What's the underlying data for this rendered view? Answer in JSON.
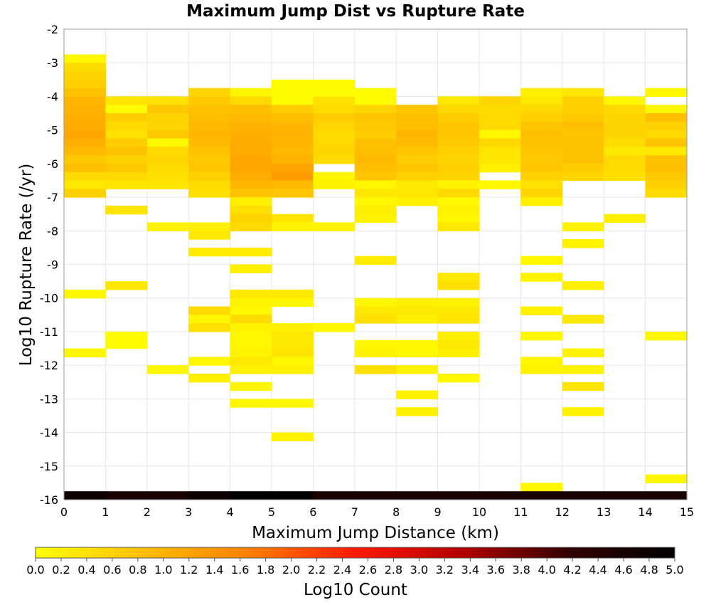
{
  "chart_data": {
    "type": "heatmap",
    "title": "Maximum Jump Dist vs Rupture Rate",
    "xlabel": "Maximum Jump Distance (km)",
    "ylabel": "Log10 Rupture Rate (/yr)",
    "colorbar_label": "Log10 Count",
    "x_range": [
      0,
      15
    ],
    "y_range": [
      -16,
      -2
    ],
    "x_ticks": [
      "0",
      "1",
      "2",
      "3",
      "4",
      "5",
      "6",
      "7",
      "8",
      "9",
      "10",
      "11",
      "12",
      "13",
      "14",
      "15"
    ],
    "y_ticks": [
      "-2",
      "-3",
      "-4",
      "-5",
      "-6",
      "-7",
      "-8",
      "-9",
      "-10",
      "-11",
      "-12",
      "-13",
      "-14",
      "-15",
      "-16"
    ],
    "colorbar_range": [
      0.0,
      5.0
    ],
    "colorbar_ticks": [
      "0.0",
      "0.2",
      "0.4",
      "0.6",
      "0.8",
      "1.0",
      "1.2",
      "1.4",
      "1.6",
      "1.8",
      "2.0",
      "2.2",
      "2.4",
      "2.6",
      "2.8",
      "3.0",
      "3.2",
      "3.4",
      "3.6",
      "3.8",
      "4.0",
      "4.2",
      "4.4",
      "4.6",
      "4.8",
      "5.0"
    ],
    "colormap": [
      "#ffff00",
      "#ffbf00",
      "#ff8000",
      "#ff1a00",
      "#b30000",
      "#330000",
      "#000000"
    ],
    "grid": true,
    "bin_width_x": 1,
    "bin_height_y": 0.25,
    "cells": [
      [
        0,
        -2.75,
        0.1
      ],
      [
        0,
        -3.0,
        0.45
      ],
      [
        0,
        -3.25,
        0.55
      ],
      [
        0,
        -3.5,
        0.6
      ],
      [
        0,
        -3.75,
        0.8
      ],
      [
        0,
        -4.0,
        0.95
      ],
      [
        0,
        -4.25,
        1.0
      ],
      [
        0,
        -4.5,
        1.05
      ],
      [
        0,
        -4.75,
        1.1
      ],
      [
        0,
        -5.0,
        1.15
      ],
      [
        0,
        -5.25,
        1.05
      ],
      [
        0,
        -5.5,
        0.9
      ],
      [
        0,
        -5.75,
        0.7
      ],
      [
        0,
        -6.0,
        0.85
      ],
      [
        0,
        -6.25,
        0.5
      ],
      [
        0,
        -6.5,
        0.3
      ],
      [
        0,
        -6.75,
        0.6
      ],
      [
        0,
        -9.75,
        0.1
      ],
      [
        0,
        -11.5,
        0.1
      ],
      [
        0,
        -15.75,
        4.8
      ],
      [
        1,
        -4.0,
        0.35
      ],
      [
        1,
        -4.25,
        0.05
      ],
      [
        1,
        -4.5,
        0.65
      ],
      [
        1,
        -4.75,
        0.5
      ],
      [
        1,
        -5.0,
        0.4
      ],
      [
        1,
        -5.25,
        0.65
      ],
      [
        1,
        -5.5,
        0.8
      ],
      [
        1,
        -5.75,
        0.6
      ],
      [
        1,
        -6.0,
        0.7
      ],
      [
        1,
        -6.25,
        0.5
      ],
      [
        1,
        -6.5,
        0.35
      ],
      [
        1,
        -7.25,
        0.35
      ],
      [
        1,
        -9.5,
        0.3
      ],
      [
        1,
        -11.0,
        0.05
      ],
      [
        1,
        -11.25,
        0.05
      ],
      [
        1,
        -15.75,
        4.6
      ],
      [
        2,
        -4.0,
        0.4
      ],
      [
        2,
        -4.25,
        0.7
      ],
      [
        2,
        -4.5,
        0.55
      ],
      [
        2,
        -4.75,
        0.55
      ],
      [
        2,
        -5.0,
        0.7
      ],
      [
        2,
        -5.25,
        0.1
      ],
      [
        2,
        -5.5,
        0.5
      ],
      [
        2,
        -5.75,
        0.55
      ],
      [
        2,
        -6.0,
        0.45
      ],
      [
        2,
        -6.25,
        0.4
      ],
      [
        2,
        -6.5,
        0.35
      ],
      [
        2,
        -7.75,
        0.15
      ],
      [
        2,
        -12.0,
        0.1
      ],
      [
        2,
        -15.75,
        4.6
      ],
      [
        3,
        -3.75,
        0.55
      ],
      [
        3,
        -4.0,
        0.7
      ],
      [
        3,
        -4.25,
        0.8
      ],
      [
        3,
        -4.5,
        0.85
      ],
      [
        3,
        -4.75,
        0.9
      ],
      [
        3,
        -5.0,
        0.95
      ],
      [
        3,
        -5.25,
        0.9
      ],
      [
        3,
        -5.5,
        0.8
      ],
      [
        3,
        -5.75,
        0.7
      ],
      [
        3,
        -6.0,
        0.75
      ],
      [
        3,
        -6.25,
        0.6
      ],
      [
        3,
        -6.5,
        0.45
      ],
      [
        3,
        -6.75,
        0.4
      ],
      [
        3,
        -7.75,
        0.2
      ],
      [
        3,
        -8.0,
        0.3
      ],
      [
        3,
        -8.5,
        0.25
      ],
      [
        3,
        -10.25,
        0.5
      ],
      [
        3,
        -10.5,
        0.1
      ],
      [
        3,
        -10.75,
        0.4
      ],
      [
        3,
        -11.75,
        0.1
      ],
      [
        3,
        -12.25,
        0.2
      ],
      [
        3,
        -15.75,
        4.8
      ],
      [
        4,
        -3.75,
        0.1
      ],
      [
        4,
        -4.0,
        0.5
      ],
      [
        4,
        -4.25,
        0.85
      ],
      [
        4,
        -4.5,
        0.9
      ],
      [
        4,
        -4.75,
        1.0
      ],
      [
        4,
        -5.0,
        1.05
      ],
      [
        4,
        -5.25,
        1.1
      ],
      [
        4,
        -5.5,
        1.1
      ],
      [
        4,
        -5.75,
        1.15
      ],
      [
        4,
        -6.0,
        1.15
      ],
      [
        4,
        -6.25,
        1.1
      ],
      [
        4,
        -6.5,
        0.95
      ],
      [
        4,
        -6.75,
        0.8
      ],
      [
        4,
        -7.0,
        0.2
      ],
      [
        4,
        -7.25,
        0.4
      ],
      [
        4,
        -7.5,
        0.55
      ],
      [
        4,
        -7.75,
        0.5
      ],
      [
        4,
        -8.5,
        0.25
      ],
      [
        4,
        -9.0,
        0.2
      ],
      [
        4,
        -9.75,
        0.3
      ],
      [
        4,
        -10.0,
        0.15
      ],
      [
        4,
        -10.25,
        0.1
      ],
      [
        4,
        -10.5,
        0.45
      ],
      [
        4,
        -10.75,
        0.15
      ],
      [
        4,
        -11.0,
        0.1
      ],
      [
        4,
        -11.25,
        0.1
      ],
      [
        4,
        -11.5,
        0.15
      ],
      [
        4,
        -11.75,
        0.3
      ],
      [
        4,
        -12.0,
        0.2
      ],
      [
        4,
        -12.5,
        0.1
      ],
      [
        4,
        -13.0,
        0.1
      ],
      [
        4,
        -15.75,
        5.0
      ],
      [
        5,
        -3.5,
        0.05
      ],
      [
        5,
        -3.75,
        0.05
      ],
      [
        5,
        -4.0,
        0.05
      ],
      [
        5,
        -4.25,
        0.65
      ],
      [
        5,
        -4.5,
        0.85
      ],
      [
        5,
        -4.75,
        0.95
      ],
      [
        5,
        -5.0,
        1.0
      ],
      [
        5,
        -5.25,
        0.95
      ],
      [
        5,
        -5.5,
        0.9
      ],
      [
        5,
        -5.75,
        1.0
      ],
      [
        5,
        -6.0,
        1.2
      ],
      [
        5,
        -6.25,
        1.3
      ],
      [
        5,
        -6.5,
        0.9
      ],
      [
        5,
        -6.75,
        0.75
      ],
      [
        5,
        -7.5,
        0.35
      ],
      [
        5,
        -7.75,
        0.15
      ],
      [
        5,
        -9.75,
        0.3
      ],
      [
        5,
        -10.0,
        0.1
      ],
      [
        5,
        -10.75,
        0.2
      ],
      [
        5,
        -11.0,
        0.3
      ],
      [
        5,
        -11.25,
        0.3
      ],
      [
        5,
        -11.5,
        0.35
      ],
      [
        5,
        -11.75,
        0.1
      ],
      [
        5,
        -12.0,
        0.2
      ],
      [
        5,
        -13.0,
        0.1
      ],
      [
        5,
        -14.0,
        0.15
      ],
      [
        5,
        -15.75,
        5.0
      ],
      [
        6,
        -3.5,
        0.05
      ],
      [
        6,
        -3.75,
        0.05
      ],
      [
        6,
        -4.0,
        0.4
      ],
      [
        6,
        -4.25,
        0.45
      ],
      [
        6,
        -4.5,
        0.65
      ],
      [
        6,
        -4.75,
        0.55
      ],
      [
        6,
        -5.0,
        0.45
      ],
      [
        6,
        -5.25,
        0.5
      ],
      [
        6,
        -5.5,
        0.55
      ],
      [
        6,
        -5.75,
        0.45
      ],
      [
        6,
        -6.25,
        0.1
      ],
      [
        6,
        -6.5,
        0.15
      ],
      [
        6,
        -7.75,
        0.15
      ],
      [
        6,
        -10.75,
        0.1
      ],
      [
        6,
        -15.75,
        4.6
      ],
      [
        7,
        -3.75,
        0.05
      ],
      [
        7,
        -4.0,
        0.05
      ],
      [
        7,
        -4.25,
        0.55
      ],
      [
        7,
        -4.5,
        0.75
      ],
      [
        7,
        -4.75,
        0.7
      ],
      [
        7,
        -5.0,
        0.65
      ],
      [
        7,
        -5.25,
        0.8
      ],
      [
        7,
        -5.5,
        0.85
      ],
      [
        7,
        -5.75,
        0.9
      ],
      [
        7,
        -6.0,
        0.85
      ],
      [
        7,
        -6.25,
        0.75
      ],
      [
        7,
        -6.5,
        0.1
      ],
      [
        7,
        -6.75,
        0.3
      ],
      [
        7,
        -7.0,
        0.1
      ],
      [
        7,
        -7.25,
        0.2
      ],
      [
        7,
        -7.5,
        0.15
      ],
      [
        7,
        -8.75,
        0.25
      ],
      [
        7,
        -10.0,
        0.1
      ],
      [
        7,
        -10.25,
        0.3
      ],
      [
        7,
        -10.5,
        0.4
      ],
      [
        7,
        -11.25,
        0.1
      ],
      [
        7,
        -11.5,
        0.15
      ],
      [
        7,
        -12.0,
        0.4
      ],
      [
        7,
        -15.75,
        4.6
      ],
      [
        8,
        -4.25,
        0.75
      ],
      [
        8,
        -4.5,
        0.85
      ],
      [
        8,
        -4.75,
        0.85
      ],
      [
        8,
        -5.0,
        0.95
      ],
      [
        8,
        -5.25,
        0.9
      ],
      [
        8,
        -5.5,
        0.75
      ],
      [
        8,
        -5.75,
        0.65
      ],
      [
        8,
        -6.0,
        0.75
      ],
      [
        8,
        -6.25,
        0.6
      ],
      [
        8,
        -6.5,
        0.3
      ],
      [
        8,
        -6.75,
        0.3
      ],
      [
        8,
        -7.0,
        0.2
      ],
      [
        8,
        -10.0,
        0.2
      ],
      [
        8,
        -10.25,
        0.3
      ],
      [
        8,
        -10.5,
        0.2
      ],
      [
        8,
        -11.25,
        0.1
      ],
      [
        8,
        -11.5,
        0.1
      ],
      [
        8,
        -12.0,
        0.15
      ],
      [
        8,
        -12.75,
        0.15
      ],
      [
        8,
        -13.25,
        0.2
      ],
      [
        8,
        -15.75,
        4.6
      ],
      [
        9,
        -4.0,
        0.3
      ],
      [
        9,
        -4.25,
        0.5
      ],
      [
        9,
        -4.5,
        0.65
      ],
      [
        9,
        -4.75,
        0.75
      ],
      [
        9,
        -5.0,
        0.75
      ],
      [
        9,
        -5.25,
        0.7
      ],
      [
        9,
        -5.5,
        0.6
      ],
      [
        9,
        -5.75,
        0.55
      ],
      [
        9,
        -6.0,
        0.6
      ],
      [
        9,
        -6.25,
        0.55
      ],
      [
        9,
        -6.5,
        0.15
      ],
      [
        9,
        -6.75,
        0.5
      ],
      [
        9,
        -7.0,
        0.1
      ],
      [
        9,
        -7.25,
        0.15
      ],
      [
        9,
        -7.5,
        0.1
      ],
      [
        9,
        -7.75,
        0.3
      ],
      [
        9,
        -9.25,
        0.3
      ],
      [
        9,
        -9.5,
        0.4
      ],
      [
        9,
        -10.0,
        0.15
      ],
      [
        9,
        -10.25,
        0.3
      ],
      [
        9,
        -10.5,
        0.35
      ],
      [
        9,
        -11.0,
        0.2
      ],
      [
        9,
        -11.25,
        0.3
      ],
      [
        9,
        -11.5,
        0.2
      ],
      [
        9,
        -12.25,
        0.1
      ],
      [
        9,
        -15.75,
        4.6
      ],
      [
        10,
        -4.0,
        0.55
      ],
      [
        10,
        -4.25,
        0.45
      ],
      [
        10,
        -4.5,
        0.5
      ],
      [
        10,
        -4.75,
        0.5
      ],
      [
        10,
        -5.0,
        0.1
      ],
      [
        10,
        -5.25,
        0.5
      ],
      [
        10,
        -5.5,
        0.35
      ],
      [
        10,
        -5.75,
        0.3
      ],
      [
        10,
        -6.0,
        0.2
      ],
      [
        10,
        -6.5,
        0.1
      ],
      [
        10,
        -15.75,
        4.6
      ],
      [
        11,
        -3.75,
        0.2
      ],
      [
        11,
        -4.0,
        0.3
      ],
      [
        11,
        -4.25,
        0.5
      ],
      [
        11,
        -4.5,
        0.6
      ],
      [
        11,
        -4.75,
        0.75
      ],
      [
        11,
        -5.0,
        0.85
      ],
      [
        11,
        -5.25,
        0.8
      ],
      [
        11,
        -5.5,
        0.75
      ],
      [
        11,
        -5.75,
        0.7
      ],
      [
        11,
        -6.0,
        0.75
      ],
      [
        11,
        -6.25,
        0.6
      ],
      [
        11,
        -6.5,
        0.4
      ],
      [
        11,
        -6.75,
        0.55
      ],
      [
        11,
        -7.0,
        0.2
      ],
      [
        11,
        -8.75,
        0.1
      ],
      [
        11,
        -9.25,
        0.15
      ],
      [
        11,
        -10.25,
        0.15
      ],
      [
        11,
        -11.0,
        0.1
      ],
      [
        11,
        -11.75,
        0.1
      ],
      [
        11,
        -12.0,
        0.15
      ],
      [
        11,
        -15.5,
        0.1
      ],
      [
        11,
        -15.75,
        4.6
      ],
      [
        12,
        -3.75,
        0.3
      ],
      [
        12,
        -4.0,
        0.6
      ],
      [
        12,
        -4.25,
        0.6
      ],
      [
        12,
        -4.5,
        0.7
      ],
      [
        12,
        -4.75,
        0.85
      ],
      [
        12,
        -5.0,
        0.75
      ],
      [
        12,
        -5.25,
        0.8
      ],
      [
        12,
        -5.5,
        0.8
      ],
      [
        12,
        -5.75,
        0.8
      ],
      [
        12,
        -6.0,
        0.65
      ],
      [
        12,
        -6.25,
        0.55
      ],
      [
        12,
        -7.75,
        0.15
      ],
      [
        12,
        -8.25,
        0.15
      ],
      [
        12,
        -9.5,
        0.2
      ],
      [
        12,
        -10.5,
        0.3
      ],
      [
        12,
        -11.5,
        0.15
      ],
      [
        12,
        -12.0,
        0.15
      ],
      [
        12,
        -12.5,
        0.35
      ],
      [
        12,
        -13.25,
        0.15
      ],
      [
        12,
        -15.75,
        4.6
      ],
      [
        13,
        -4.0,
        0.1
      ],
      [
        13,
        -4.25,
        0.5
      ],
      [
        13,
        -4.5,
        0.55
      ],
      [
        13,
        -4.75,
        0.55
      ],
      [
        13,
        -5.0,
        0.55
      ],
      [
        13,
        -5.25,
        0.45
      ],
      [
        13,
        -5.5,
        0.3
      ],
      [
        13,
        -5.75,
        0.5
      ],
      [
        13,
        -6.0,
        0.45
      ],
      [
        13,
        -6.25,
        0.4
      ],
      [
        13,
        -7.5,
        0.2
      ],
      [
        13,
        -15.75,
        4.6
      ],
      [
        14,
        -3.75,
        0.1
      ],
      [
        14,
        -4.25,
        0.1
      ],
      [
        14,
        -4.5,
        0.85
      ],
      [
        14,
        -4.75,
        0.6
      ],
      [
        14,
        -5.0,
        0.5
      ],
      [
        14,
        -5.25,
        0.75
      ],
      [
        14,
        -5.5,
        0.3
      ],
      [
        14,
        -5.75,
        0.8
      ],
      [
        14,
        -6.0,
        0.85
      ],
      [
        14,
        -6.25,
        0.7
      ],
      [
        14,
        -6.5,
        0.6
      ],
      [
        14,
        -6.75,
        0.45
      ],
      [
        14,
        -11.0,
        0.1
      ],
      [
        14,
        -15.25,
        0.1
      ],
      [
        14,
        -15.75,
        4.6
      ]
    ]
  }
}
